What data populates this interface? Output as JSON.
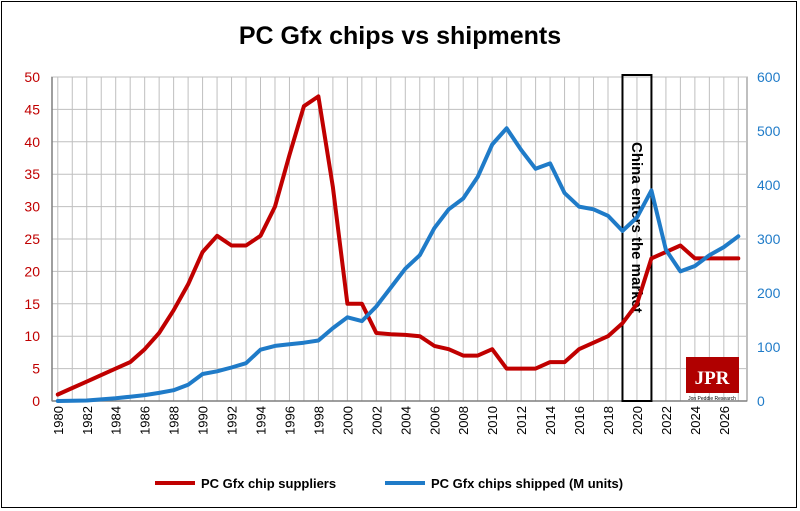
{
  "chart_data": {
    "type": "line",
    "title": "PC Gfx chips vs shipments",
    "x": [
      1980,
      1981,
      1982,
      1983,
      1984,
      1985,
      1986,
      1987,
      1988,
      1989,
      1990,
      1991,
      1992,
      1993,
      1994,
      1995,
      1996,
      1997,
      1998,
      1999,
      2000,
      2001,
      2002,
      2003,
      2004,
      2005,
      2006,
      2007,
      2008,
      2009,
      2010,
      2011,
      2012,
      2013,
      2014,
      2015,
      2016,
      2017,
      2018,
      2019,
      2020,
      2021,
      2022,
      2023,
      2024,
      2025,
      2026,
      2027
    ],
    "xlim": [
      1979.6,
      2027.6
    ],
    "x_ticks": [
      "1980",
      "1982",
      "1984",
      "1986",
      "1988",
      "1990",
      "1992",
      "1994",
      "1996",
      "1998",
      "2000",
      "2002",
      "2004",
      "2006",
      "2008",
      "2010",
      "2012",
      "2014",
      "2016",
      "2018",
      "2020",
      "2022",
      "2024",
      "2026"
    ],
    "y_left": {
      "ylim": [
        0,
        50
      ],
      "ticks": [
        "0",
        "5",
        "10",
        "15",
        "20",
        "25",
        "30",
        "35",
        "40",
        "45",
        "50"
      ],
      "color": "#c00000"
    },
    "y_right": {
      "ylim": [
        0,
        600
      ],
      "ticks": [
        "0",
        "100",
        "200",
        "300",
        "400",
        "500",
        "600"
      ],
      "color": "#1f7bc8"
    },
    "series": [
      {
        "name": "PC Gfx chip suppliers",
        "axis": "left",
        "color": "#c00000",
        "values": [
          1,
          2,
          3,
          4,
          5,
          6,
          8,
          10.5,
          14,
          18,
          23,
          25.5,
          24,
          24,
          25.5,
          30,
          38,
          45.5,
          47,
          33,
          15,
          15,
          10.5,
          10.3,
          10.2,
          10,
          8.5,
          8,
          7,
          7,
          8,
          5,
          5,
          5,
          6,
          6,
          8,
          9,
          10,
          12,
          15,
          22,
          23,
          24,
          22,
          22,
          22,
          22
        ]
      },
      {
        "name": "PC Gfx chips shipped (M units)",
        "axis": "right",
        "color": "#1f7bc8",
        "values": [
          0,
          0.5,
          1,
          3,
          5,
          8,
          11,
          15,
          20,
          30,
          50,
          55,
          62,
          70,
          95,
          102,
          105,
          108,
          112,
          135,
          155,
          148,
          175,
          210,
          245,
          270,
          320,
          355,
          375,
          415,
          475,
          505,
          465,
          430,
          440,
          385,
          360,
          355,
          343,
          315,
          340,
          390,
          280,
          240,
          250,
          270,
          285,
          305
        ]
      }
    ],
    "annotation": {
      "text": "China enters the market",
      "x_range": [
        2019,
        2021
      ]
    },
    "grid": true,
    "legend": "bottom",
    "logo": {
      "text": "JPR",
      "subtext": "Jon Peddie Research"
    }
  },
  "legend": {
    "suppliers": "PC Gfx chip suppliers",
    "shipped": "PC Gfx chips shipped (M units)"
  }
}
